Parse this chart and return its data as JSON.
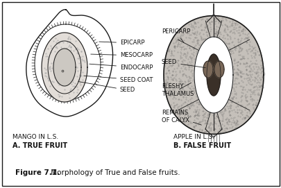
{
  "title_bold": "Figure 7.1.",
  "title_normal": " Morphology of True and False fruits.",
  "mango_label": "MANGO IN L.S.",
  "mango_sublabel": "A. TRUE FRUIT",
  "apple_label": "APPLE IN L.S.",
  "apple_sublabel": "B. FALSE FRUIT",
  "line_color": "#1a1a1a",
  "text_color": "#111111",
  "font_size_label": 6.5,
  "font_size_annotation": 6.0,
  "font_size_title": 7.5,
  "stipple_color": "#888888",
  "seed_fill": "#b0aca6",
  "apple_fill": "#c8c4be"
}
